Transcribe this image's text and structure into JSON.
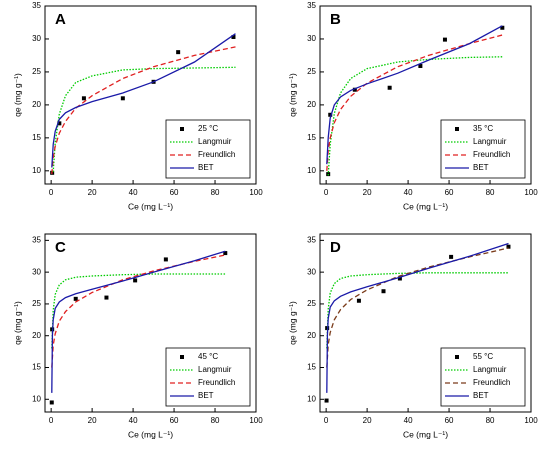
{
  "chart_data": [
    {
      "type": "scatter",
      "label": "A",
      "xlabel": "Ce (mg L⁻¹)",
      "ylabel": "qe (mg g⁻¹)",
      "xlim": [
        -3,
        100
      ],
      "ylim": [
        8,
        35
      ],
      "xticks": [
        0,
        20,
        40,
        60,
        80,
        100
      ],
      "yticks": [
        10,
        15,
        20,
        25,
        30,
        35
      ],
      "legend": "lower right",
      "series": [
        {
          "name": "25 °C",
          "style": "points",
          "color": "#000000",
          "x": [
            0.5,
            4,
            16,
            35,
            50,
            62,
            89
          ],
          "values": [
            9.7,
            17.2,
            21,
            21,
            23.5,
            28,
            30.3
          ]
        },
        {
          "name": "Langmuir",
          "style": "dotted",
          "color": "#00cc00",
          "x": [
            1,
            2,
            4,
            7,
            12,
            20,
            35,
            50,
            70,
            90
          ],
          "values": [
            9.8,
            14.2,
            18.6,
            21.4,
            23.4,
            24.4,
            25.3,
            25.5,
            25.6,
            25.7
          ]
        },
        {
          "name": "Freundlich",
          "style": "dashed",
          "color": "#e02020",
          "x": [
            0.3,
            1,
            2,
            4,
            7,
            12,
            20,
            35,
            50,
            70,
            90
          ],
          "values": [
            9.5,
            12,
            13.7,
            15.7,
            17.5,
            19.5,
            21.4,
            24,
            25.8,
            27.5,
            28.8
          ]
        },
        {
          "name": "BET",
          "style": "solid",
          "color": "#1a1aa8",
          "x": [
            0.3,
            1,
            2,
            4,
            7,
            12,
            20,
            35,
            50,
            70,
            90
          ],
          "values": [
            10.5,
            14,
            16,
            17.8,
            18.8,
            19.6,
            20.5,
            21.8,
            23.5,
            26.5,
            30.8
          ]
        }
      ]
    },
    {
      "type": "scatter",
      "label": "B",
      "xlabel": "Ce (mg L⁻¹)",
      "ylabel": "qe (mg g⁻¹)",
      "xlim": [
        -3,
        100
      ],
      "ylim": [
        8,
        35
      ],
      "xticks": [
        0,
        20,
        40,
        60,
        80,
        100
      ],
      "yticks": [
        10,
        15,
        20,
        25,
        30,
        35
      ],
      "legend": "lower right",
      "series": [
        {
          "name": "35 °C",
          "style": "points",
          "color": "#000000",
          "x": [
            1,
            2,
            14,
            31,
            46,
            58,
            86
          ],
          "values": [
            9.5,
            18.5,
            22.3,
            22.6,
            25.9,
            29.9,
            31.7
          ]
        },
        {
          "name": "Langmuir",
          "style": "dotted",
          "color": "#00cc00",
          "x": [
            1,
            2,
            4,
            7,
            12,
            20,
            35,
            50,
            70,
            86
          ],
          "values": [
            9.3,
            14,
            18.7,
            21.8,
            24,
            25.5,
            26.5,
            26.9,
            27.2,
            27.3
          ]
        },
        {
          "name": "Freundlich",
          "style": "dashed",
          "color": "#e02020",
          "x": [
            0.3,
            1,
            2,
            4,
            7,
            12,
            20,
            35,
            50,
            70,
            86
          ],
          "values": [
            10,
            13,
            15,
            17.3,
            19.3,
            21.3,
            23.3,
            25.8,
            27.5,
            29.3,
            30.6
          ]
        },
        {
          "name": "BET",
          "style": "solid",
          "color": "#1a1aa8",
          "x": [
            0.3,
            1,
            2,
            4,
            7,
            12,
            20,
            35,
            50,
            70,
            86
          ],
          "values": [
            11,
            15,
            18,
            20,
            21.2,
            22.2,
            23.2,
            24.8,
            26.8,
            29.3,
            32
          ]
        }
      ]
    },
    {
      "type": "scatter",
      "label": "C",
      "xlabel": "Ce (mg L⁻¹)",
      "ylabel": "qe (mg g⁻¹)",
      "xlim": [
        -3,
        100
      ],
      "ylim": [
        8,
        36
      ],
      "xticks": [
        0,
        20,
        40,
        60,
        80,
        100
      ],
      "yticks": [
        10,
        15,
        20,
        25,
        30,
        35
      ],
      "legend": "lower right",
      "series": [
        {
          "name": "45 °C",
          "style": "points",
          "color": "#000000",
          "x": [
            0.3,
            0.5,
            12,
            27,
            41,
            56,
            85
          ],
          "values": [
            9.5,
            21,
            25.8,
            26,
            28.7,
            32,
            33
          ]
        },
        {
          "name": "Langmuir",
          "style": "dotted",
          "color": "#00cc00",
          "x": [
            0.3,
            1,
            2,
            4,
            7,
            12,
            20,
            35,
            50,
            70,
            85
          ],
          "values": [
            18,
            24,
            26.5,
            28,
            28.8,
            29.2,
            29.4,
            29.6,
            29.7,
            29.7,
            29.7
          ]
        },
        {
          "name": "Freundlich",
          "style": "dashed",
          "color": "#e02020",
          "x": [
            0.3,
            1,
            2,
            4,
            7,
            12,
            20,
            35,
            50,
            70,
            85
          ],
          "values": [
            15,
            18.5,
            20.3,
            22.3,
            23.8,
            25.3,
            26.8,
            28.8,
            30.2,
            31.7,
            32.7
          ]
        },
        {
          "name": "BET",
          "style": "solid",
          "color": "#1a1aa8",
          "x": [
            0.3,
            0.6,
            1,
            2,
            4,
            7,
            12,
            20,
            35,
            50,
            70,
            85
          ],
          "values": [
            11,
            20,
            22.5,
            24.3,
            25.3,
            26,
            26.6,
            27.3,
            28.6,
            30,
            31.8,
            33.3
          ]
        }
      ]
    },
    {
      "type": "scatter",
      "label": "D",
      "xlabel": "Ce (mg L⁻¹)",
      "ylabel": "qe (mg g⁻¹)",
      "xlim": [
        -3,
        100
      ],
      "ylim": [
        8,
        36
      ],
      "xticks": [
        0,
        20,
        40,
        60,
        80,
        100
      ],
      "yticks": [
        10,
        15,
        20,
        25,
        30,
        35
      ],
      "legend": "lower right",
      "series": [
        {
          "name": "55 °C",
          "style": "points",
          "color": "#000000",
          "x": [
            0.2,
            0.5,
            16,
            28,
            36,
            61,
            89
          ],
          "values": [
            9.8,
            21.2,
            25.5,
            27,
            29,
            32.4,
            34
          ]
        },
        {
          "name": "Langmuir",
          "style": "dotted",
          "color": "#00cc00",
          "x": [
            0.3,
            1,
            2,
            4,
            7,
            12,
            20,
            35,
            50,
            70,
            89
          ],
          "values": [
            18,
            24.2,
            26.7,
            28.2,
            29,
            29.4,
            29.6,
            29.8,
            29.9,
            29.9,
            29.9
          ]
        },
        {
          "name": "Freundlich",
          "style": "dashed",
          "color": "#7a3b1a",
          "x": [
            0.3,
            1,
            2,
            4,
            7,
            12,
            20,
            35,
            50,
            70,
            89
          ],
          "values": [
            15,
            18.6,
            20.5,
            22.5,
            24.1,
            25.7,
            27.2,
            29.3,
            30.8,
            32.4,
            33.8
          ]
        },
        {
          "name": "BET",
          "style": "solid",
          "color": "#1a1aa8",
          "x": [
            0.3,
            0.6,
            1,
            2,
            4,
            7,
            12,
            20,
            35,
            50,
            70,
            89
          ],
          "values": [
            11,
            20,
            22.7,
            24.5,
            25.5,
            26.2,
            26.9,
            27.7,
            29.1,
            30.6,
            32.5,
            34.5
          ]
        }
      ]
    }
  ]
}
